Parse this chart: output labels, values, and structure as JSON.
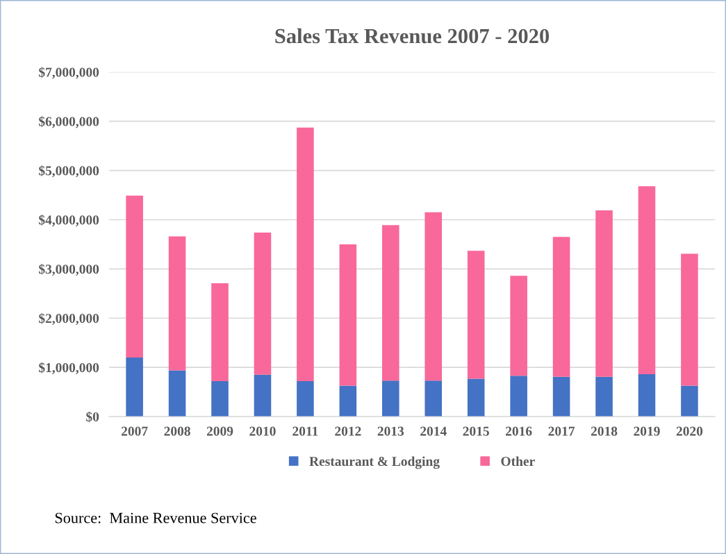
{
  "chart_data": {
    "type": "bar",
    "title": "Sales Tax Revenue 2007 - 2020",
    "categories": [
      "2007",
      "2008",
      "2009",
      "2010",
      "2011",
      "2012",
      "2013",
      "2014",
      "2015",
      "2016",
      "2017",
      "2018",
      "2019",
      "2020"
    ],
    "stacked": true,
    "series": [
      {
        "name": "Restaurant & Lodging",
        "color": "#4472c4",
        "values": [
          1200000,
          940000,
          720000,
          850000,
          720000,
          630000,
          730000,
          730000,
          770000,
          830000,
          810000,
          810000,
          860000,
          630000
        ]
      },
      {
        "name": "Other",
        "color": "#f9689a",
        "values": [
          3290000,
          2720000,
          1990000,
          2890000,
          5150000,
          2870000,
          3160000,
          3420000,
          2600000,
          2030000,
          2840000,
          3380000,
          3820000,
          2680000
        ]
      }
    ],
    "ylim": [
      0,
      7000000
    ],
    "yticks": [
      {
        "value": 0,
        "label": "$0"
      },
      {
        "value": 1000000,
        "label": "$1,000,000"
      },
      {
        "value": 2000000,
        "label": "$2,000,000"
      },
      {
        "value": 3000000,
        "label": "$3,000,000"
      },
      {
        "value": 4000000,
        "label": "$4,000,000"
      },
      {
        "value": 5000000,
        "label": "$5,000,000"
      },
      {
        "value": 6000000,
        "label": "$6,000,000"
      },
      {
        "value": 7000000,
        "label": "$7,000,000"
      }
    ],
    "grid": "y",
    "legend": "bottom",
    "annotations": [
      "Source:  Maine Revenue Service"
    ]
  }
}
